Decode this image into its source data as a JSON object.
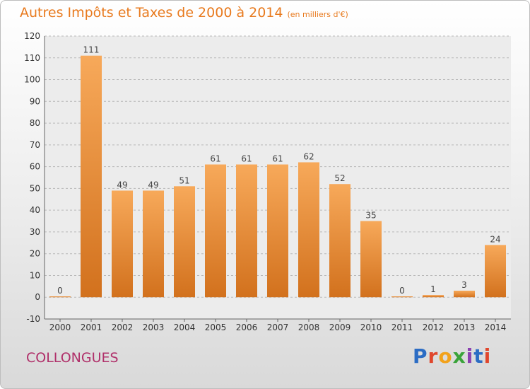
{
  "title": "Autres Impôts et Taxes de 2000 à 2014",
  "title_unit": "(en milliers d'€)",
  "town": "COLLONGUES",
  "brand": "Proxiti",
  "colors": {
    "bar_light": "#f7a95a",
    "bar_dark": "#d2711d",
    "title": "#e87a1e",
    "town": "#b0306a"
  },
  "chart_data": {
    "type": "bar",
    "title": "Autres Impôts et Taxes de 2000 à 2014",
    "categories": [
      "2000",
      "2001",
      "2002",
      "2003",
      "2004",
      "2005",
      "2006",
      "2007",
      "2008",
      "2009",
      "2010",
      "2011",
      "2012",
      "2013",
      "2014"
    ],
    "values": [
      0,
      111,
      49,
      49,
      51,
      61,
      61,
      61,
      62,
      52,
      35,
      0,
      1,
      3,
      24
    ],
    "ylim": [
      -10,
      120
    ],
    "yticks": [
      -10,
      0,
      10,
      20,
      30,
      40,
      50,
      60,
      70,
      80,
      90,
      100,
      110,
      120
    ],
    "grid": true,
    "legend": "none"
  }
}
